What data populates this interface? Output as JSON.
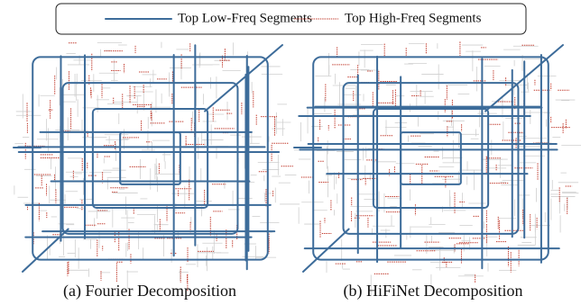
{
  "legend": {
    "items": [
      {
        "label": "Top Low-Freq Segments"
      },
      {
        "label": "Top High-Freq Segments"
      }
    ]
  },
  "panels": [
    {
      "caption": "(a) Fourier Decomposition"
    },
    {
      "caption": "(b) HiFiNet Decomposition"
    }
  ]
}
